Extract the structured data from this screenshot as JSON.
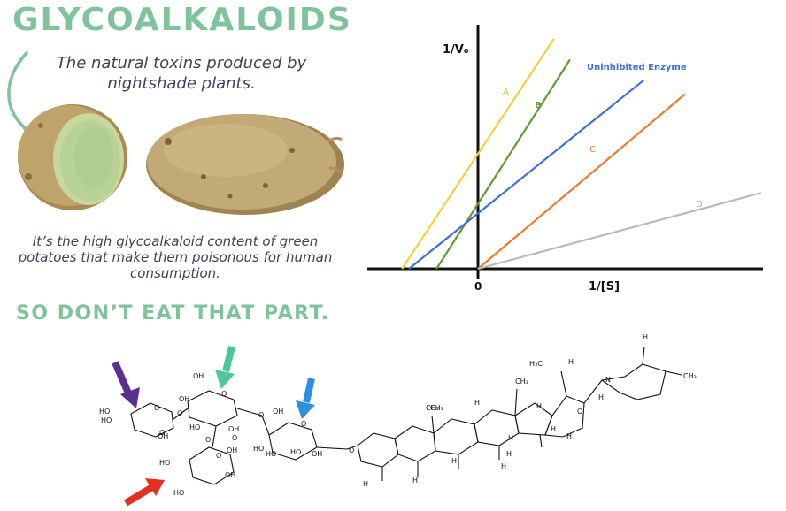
{
  "header": {
    "title": "GLYCOALKALOIDS",
    "subtitle": "The natural toxins produced by nightshade plants.",
    "note": "It’s the high glycoalkaloid content of green potatoes that make them poisonous for human consumption.",
    "warning": "SO DON’T EAT THAT PART."
  },
  "colors": {
    "accent_green": "#7fc39a",
    "text_dark": "#3d4257",
    "line_yellow": "#f2d03a",
    "line_green": "#5e9a34",
    "line_blue": "#3d6fd6",
    "line_orange": "#ee7a2b",
    "line_gray": "#b9b9b9"
  },
  "icons": [
    "curved-arrow-icon",
    "potato-image",
    "purple-arrow-icon",
    "green-arrow-icon",
    "blue-arrow-icon",
    "red-arrow-icon"
  ],
  "chart_data": {
    "type": "line",
    "ylabel": "1/V₀",
    "xlabel": "1/[S]",
    "origin_label": "0",
    "series": [
      {
        "name": "A",
        "color": "#f2d03a",
        "x": [
          -0.33,
          0.33
        ],
        "y": [
          0,
          1.0
        ]
      },
      {
        "name": "B",
        "color": "#5e9a34",
        "x": [
          -0.18,
          0.4
        ],
        "y": [
          0,
          0.91
        ]
      },
      {
        "name": "Uninhibited Enzyme",
        "color": "#3d6fd6",
        "x": [
          -0.3,
          0.72
        ],
        "y": [
          0,
          0.82
        ]
      },
      {
        "name": "C",
        "color": "#ee7a2b",
        "x": [
          0.0,
          0.9
        ],
        "y": [
          0,
          0.76
        ]
      },
      {
        "name": "D",
        "color": "#b9b9b9",
        "x": [
          0.0,
          1.23
        ],
        "y": [
          0,
          0.33
        ]
      }
    ]
  },
  "molecule": {
    "labels": [
      "H₃C",
      "H",
      "CH₃",
      "H",
      "N",
      "CH₃",
      "H",
      "CH₃",
      "H",
      "H",
      "O",
      "H",
      "H",
      "H",
      "H",
      "CH₃",
      "H",
      "O",
      "H",
      "H",
      "H",
      "OH",
      "HO",
      "O",
      "O",
      "HO",
      "HO",
      "OH",
      "OH",
      "O",
      "O",
      "OH",
      "OH",
      "HO",
      "O",
      "HO",
      "O",
      "OH",
      "HO",
      "HO",
      "OH",
      "O",
      "HO",
      "O",
      "O",
      "OH"
    ]
  }
}
